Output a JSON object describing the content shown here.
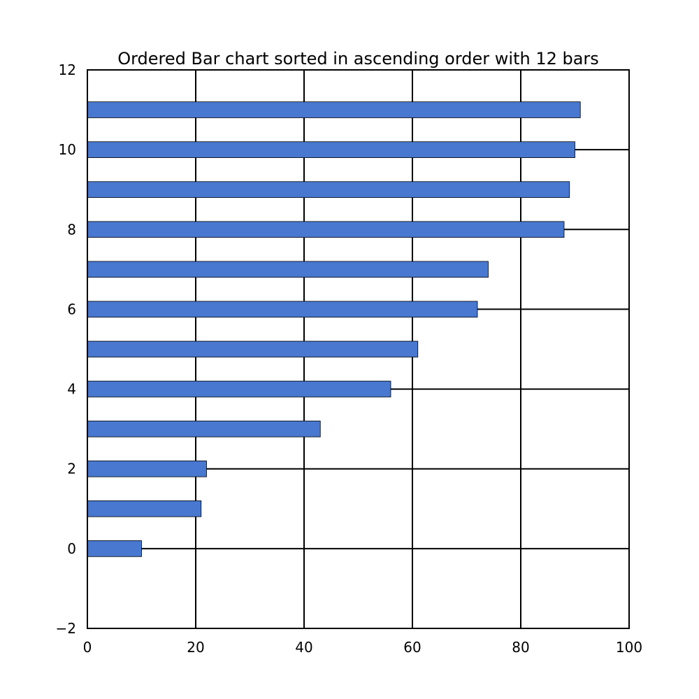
{
  "chart_data": {
    "type": "bar",
    "orientation": "horizontal",
    "title": "Ordered Bar chart sorted in ascending order with 12 bars",
    "xlabel": "",
    "ylabel": "",
    "categories": [
      0,
      1,
      2,
      3,
      4,
      5,
      6,
      7,
      8,
      9,
      10,
      11
    ],
    "values": [
      10,
      21,
      22,
      43,
      56,
      61,
      72,
      74,
      88,
      89,
      90,
      91
    ],
    "bar_color": "#4878cf",
    "xlim": [
      0,
      100
    ],
    "ylim": [
      -2,
      12
    ],
    "x_ticks": [
      0,
      20,
      40,
      60,
      80,
      100
    ],
    "x_tick_labels": [
      "0",
      "20",
      "40",
      "60",
      "80",
      "100"
    ],
    "y_ticks": [
      -2,
      0,
      2,
      4,
      6,
      8,
      10,
      12
    ],
    "y_tick_labels": [
      "−2",
      "0",
      "2",
      "4",
      "6",
      "8",
      "10",
      "12"
    ],
    "grid": true,
    "legend": "none"
  }
}
